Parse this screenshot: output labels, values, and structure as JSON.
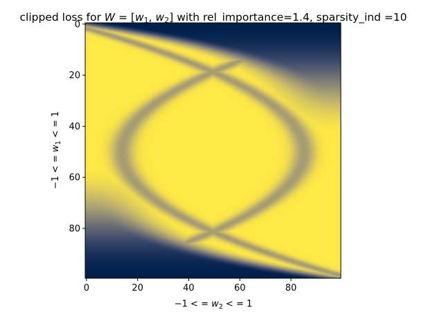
{
  "chart_data": {
    "type": "heatmap",
    "title": "clipped loss for W = [w1, w2] with rel_importance=1.4, sparsity_ind =10",
    "title_parts": {
      "prefix": "clipped loss for ",
      "W": "W",
      "eq": " = [",
      "w": "w",
      "sub1": "1",
      "comma": ", ",
      "sub2": "2",
      "suffix": "] with rel_importance=1.4, sparsity_ind =10"
    },
    "xlabel": "−1 < = w2 < = 1",
    "xlabel_parts": {
      "prefix": "−1 < = ",
      "w": "w",
      "sub": "2",
      "suffix": " < = 1"
    },
    "ylabel": "−1 < = w1 < = 1",
    "ylabel_parts": {
      "prefix": "−1 < = ",
      "w": "w",
      "sub": "1",
      "suffix": " < = 1"
    },
    "x_ticks": [
      0,
      20,
      40,
      60,
      80
    ],
    "y_ticks": [
      0,
      20,
      40,
      60,
      80
    ],
    "xlim": [
      -0.5,
      99.5
    ],
    "ylim": [
      99.5,
      -0.5
    ],
    "grid_size": [
      100,
      100
    ],
    "colormap": "cividis",
    "colors": {
      "low": "#00204c",
      "mid": "#7c7b78",
      "high": "#ffe945"
    },
    "grid": false,
    "legend": "none"
  }
}
